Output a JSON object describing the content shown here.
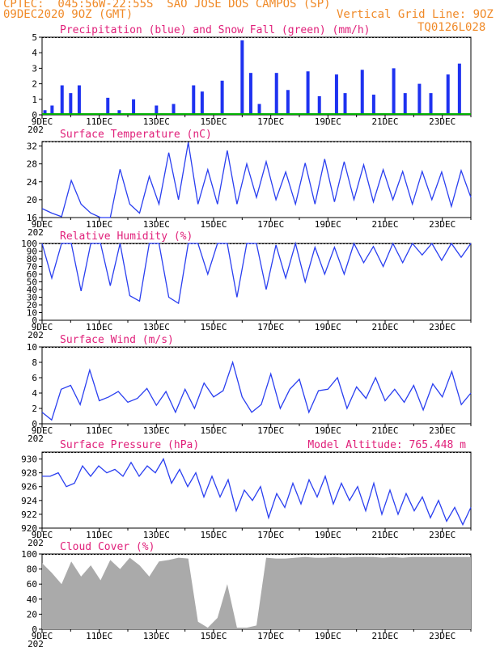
{
  "header": {
    "line1": "CPTEC:  045:56W-22:55S  SAO JOSE DOS CAMPOS (SP)",
    "date": "09DEC2020 9OZ (GMT)",
    "grid_line": "Vertical Grid Line: 9OZ",
    "code": "TQ0126L028"
  },
  "colors": {
    "header": "#f08a28",
    "subtitle": "#e0207a",
    "line": "#2a3ff0",
    "bar": "#1e32f0",
    "snow": "#00b000",
    "cloud": "#aaaaaa"
  },
  "x_ticks": [
    "9DEC",
    "11DEC",
    "13DEC",
    "15DEC",
    "17DEC",
    "19DEC",
    "21DEC",
    "23DEC"
  ],
  "year_stub": "202",
  "chart_data": [
    {
      "type": "bar",
      "title": "Precipitation (blue) and Snow Fall (green) (mm/h)",
      "ylim": [
        0,
        5
      ],
      "yticks": [
        0,
        1,
        2,
        3,
        4,
        5
      ],
      "series": [
        {
          "name": "Precipitation",
          "days": [
            0.1,
            0.35,
            0.7,
            1.0,
            1.3,
            2.3,
            2.7,
            3.2,
            4.0,
            4.6,
            5.3,
            5.6,
            6.3,
            7.0,
            7.3,
            7.6,
            8.2,
            8.6,
            9.3,
            9.7,
            10.3,
            10.6,
            11.2,
            11.6,
            12.3,
            12.7,
            13.2,
            13.6,
            14.2,
            14.6
          ],
          "values": [
            0.3,
            0.6,
            1.9,
            1.4,
            1.9,
            1.1,
            0.3,
            1.0,
            0.6,
            0.7,
            1.9,
            1.5,
            2.2,
            4.8,
            2.7,
            0.7,
            2.7,
            1.6,
            2.8,
            1.2,
            2.6,
            1.4,
            2.9,
            1.3,
            3.0,
            1.4,
            2.0,
            1.4,
            2.6,
            3.3
          ]
        },
        {
          "name": "Snow Fall",
          "days": [
            0,
            15
          ],
          "values": [
            0,
            0
          ]
        }
      ]
    },
    {
      "type": "line",
      "title": "Surface Temperature (nC)",
      "ylim": [
        16,
        33
      ],
      "yticks": [
        16,
        20,
        24,
        28,
        32
      ],
      "values": [
        18,
        17,
        16.2,
        24.3,
        19,
        17,
        16,
        16,
        26.8,
        19,
        17,
        25.2,
        19,
        30.5,
        20,
        32.8,
        19,
        26.7,
        19,
        31,
        19,
        28,
        20.5,
        28.5,
        20,
        26.2,
        19,
        28.2,
        19,
        29.1,
        19.5,
        28.5,
        20,
        27.8,
        19.5,
        26.7,
        20,
        26.3,
        19,
        26.3,
        20,
        26.2,
        18.5,
        26.5,
        20.5
      ]
    },
    {
      "type": "line",
      "title": "Relative Humidity (%)",
      "ylim": [
        0,
        100
      ],
      "yticks": [
        0,
        10,
        20,
        30,
        40,
        50,
        60,
        70,
        80,
        90,
        100
      ],
      "values": [
        100,
        55,
        100,
        100,
        38,
        100,
        100,
        45,
        100,
        32,
        25,
        100,
        100,
        30,
        22,
        100,
        100,
        60,
        100,
        100,
        30,
        100,
        100,
        40,
        98,
        55,
        100,
        50,
        95,
        60,
        95,
        60,
        100,
        75,
        96,
        70,
        100,
        75,
        100,
        85,
        100,
        78,
        100,
        82,
        100
      ]
    },
    {
      "type": "line",
      "title": "Surface Wind (m/s)",
      "ylim": [
        0,
        10
      ],
      "yticks": [
        0,
        2,
        4,
        6,
        8,
        10
      ],
      "values": [
        1.5,
        0.5,
        4.5,
        5,
        2.5,
        7,
        3,
        3.5,
        4.2,
        2.8,
        3.3,
        4.6,
        2.4,
        4.2,
        1.5,
        4.5,
        2,
        5.3,
        3.5,
        4.3,
        8,
        3.5,
        1.5,
        2.5,
        6.5,
        2,
        4.5,
        5.8,
        1.5,
        4.3,
        4.5,
        6,
        2,
        4.8,
        3.3,
        6,
        3,
        4.5,
        2.8,
        5,
        1.8,
        5.2,
        3.5,
        6.8,
        2.5,
        4
      ]
    },
    {
      "type": "line",
      "title": "Surface Pressure (hPa)",
      "annotation": "Model Altitude: 765.448  m",
      "ylim": [
        920,
        931
      ],
      "yticks": [
        920,
        922,
        924,
        926,
        928,
        930
      ],
      "values": [
        927.5,
        927.5,
        928,
        926,
        926.5,
        929,
        927.5,
        929,
        928,
        928.5,
        927.5,
        929.5,
        927.5,
        929,
        928,
        930,
        926.5,
        928.5,
        926,
        928,
        924.5,
        927.5,
        924.5,
        927,
        922.5,
        925.5,
        924,
        926,
        921.5,
        925,
        923,
        926.5,
        923.5,
        927,
        924.5,
        927.5,
        923.5,
        926.5,
        924,
        926,
        922.5,
        926.5,
        922,
        925.5,
        922,
        925,
        922.5,
        924.5,
        921.5,
        924,
        921,
        923,
        920.5,
        923
      ]
    },
    {
      "type": "area",
      "title": "Cloud Cover (%)",
      "ylim": [
        0,
        100
      ],
      "yticks": [
        0,
        20,
        40,
        60,
        80,
        100
      ],
      "values": [
        88,
        75,
        60,
        90,
        70,
        85,
        65,
        92,
        80,
        95,
        85,
        70,
        90,
        92,
        95,
        94,
        10,
        2,
        15,
        60,
        2,
        2,
        5,
        95,
        94,
        94,
        95,
        96,
        95,
        95,
        96,
        95,
        96,
        96,
        96,
        95,
        96,
        95,
        96,
        96,
        96,
        96,
        96,
        96,
        96
      ]
    }
  ]
}
